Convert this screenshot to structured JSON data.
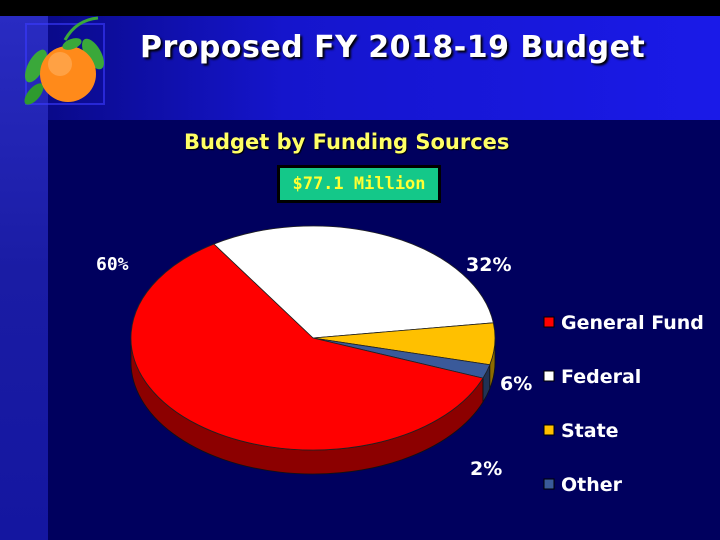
{
  "title": "Proposed FY 2018-19 Budget",
  "colors": {
    "background": "#00005e",
    "title_band": "#1a1ae8",
    "subtitle": "#ffff66",
    "total_box": "#14c889"
  },
  "chart_data": {
    "type": "pie",
    "title": "Budget by Funding Sources",
    "total_label": "$77.1 Million",
    "style": "3d",
    "legend_position": "right",
    "slices": [
      {
        "name": "General Fund",
        "value": 60,
        "label": "60%",
        "color": "#ff0000"
      },
      {
        "name": "Federal",
        "value": 32,
        "label": "32%",
        "color": "#ffffff"
      },
      {
        "name": "State",
        "value": 6,
        "label": "6%",
        "color": "#ffc000"
      },
      {
        "name": "Other",
        "value": 2,
        "label": "2%",
        "color": "#3a5a9a"
      }
    ]
  }
}
